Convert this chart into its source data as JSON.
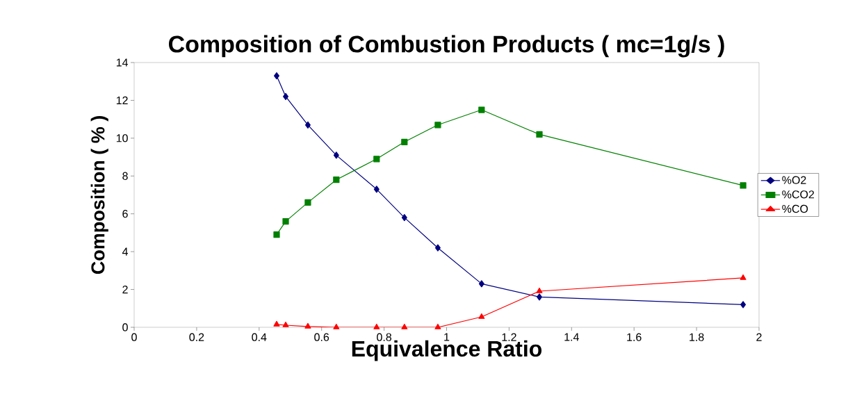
{
  "chart_data": {
    "type": "line",
    "title": "Composition of Combustion Products ( mc=1g/s )",
    "xlabel": "Equivalence Ratio",
    "ylabel": "Composition ( % )",
    "x": [
      0.456,
      0.485,
      0.556,
      0.647,
      0.776,
      0.865,
      0.972,
      1.112,
      1.297,
      1.949
    ],
    "series": [
      {
        "name": "%O2",
        "color": "#000080",
        "marker": "diamond",
        "values": [
          13.3,
          12.2,
          10.7,
          9.1,
          7.3,
          5.8,
          4.2,
          2.3,
          1.6,
          1.2
        ]
      },
      {
        "name": "%CO2",
        "color": "#008000",
        "marker": "square",
        "values": [
          4.9,
          5.6,
          6.6,
          7.8,
          8.9,
          9.8,
          10.7,
          11.5,
          10.2,
          7.5
        ]
      },
      {
        "name": "%CO",
        "color": "#ff0000",
        "marker": "triangle",
        "values": [
          0.15,
          0.11,
          0.04,
          0,
          0,
          0,
          0,
          0.55,
          1.91,
          2.61
        ]
      }
    ],
    "xlim": [
      0,
      2
    ],
    "xticks": [
      0,
      0.2,
      0.4,
      0.6,
      0.8,
      1,
      1.2,
      1.4,
      1.6,
      1.8,
      2
    ],
    "ylim": [
      0,
      14
    ],
    "yticks": [
      0,
      2,
      4,
      6,
      8,
      10,
      12,
      14
    ],
    "legend": "right",
    "grid": false,
    "line_style": "solid"
  }
}
